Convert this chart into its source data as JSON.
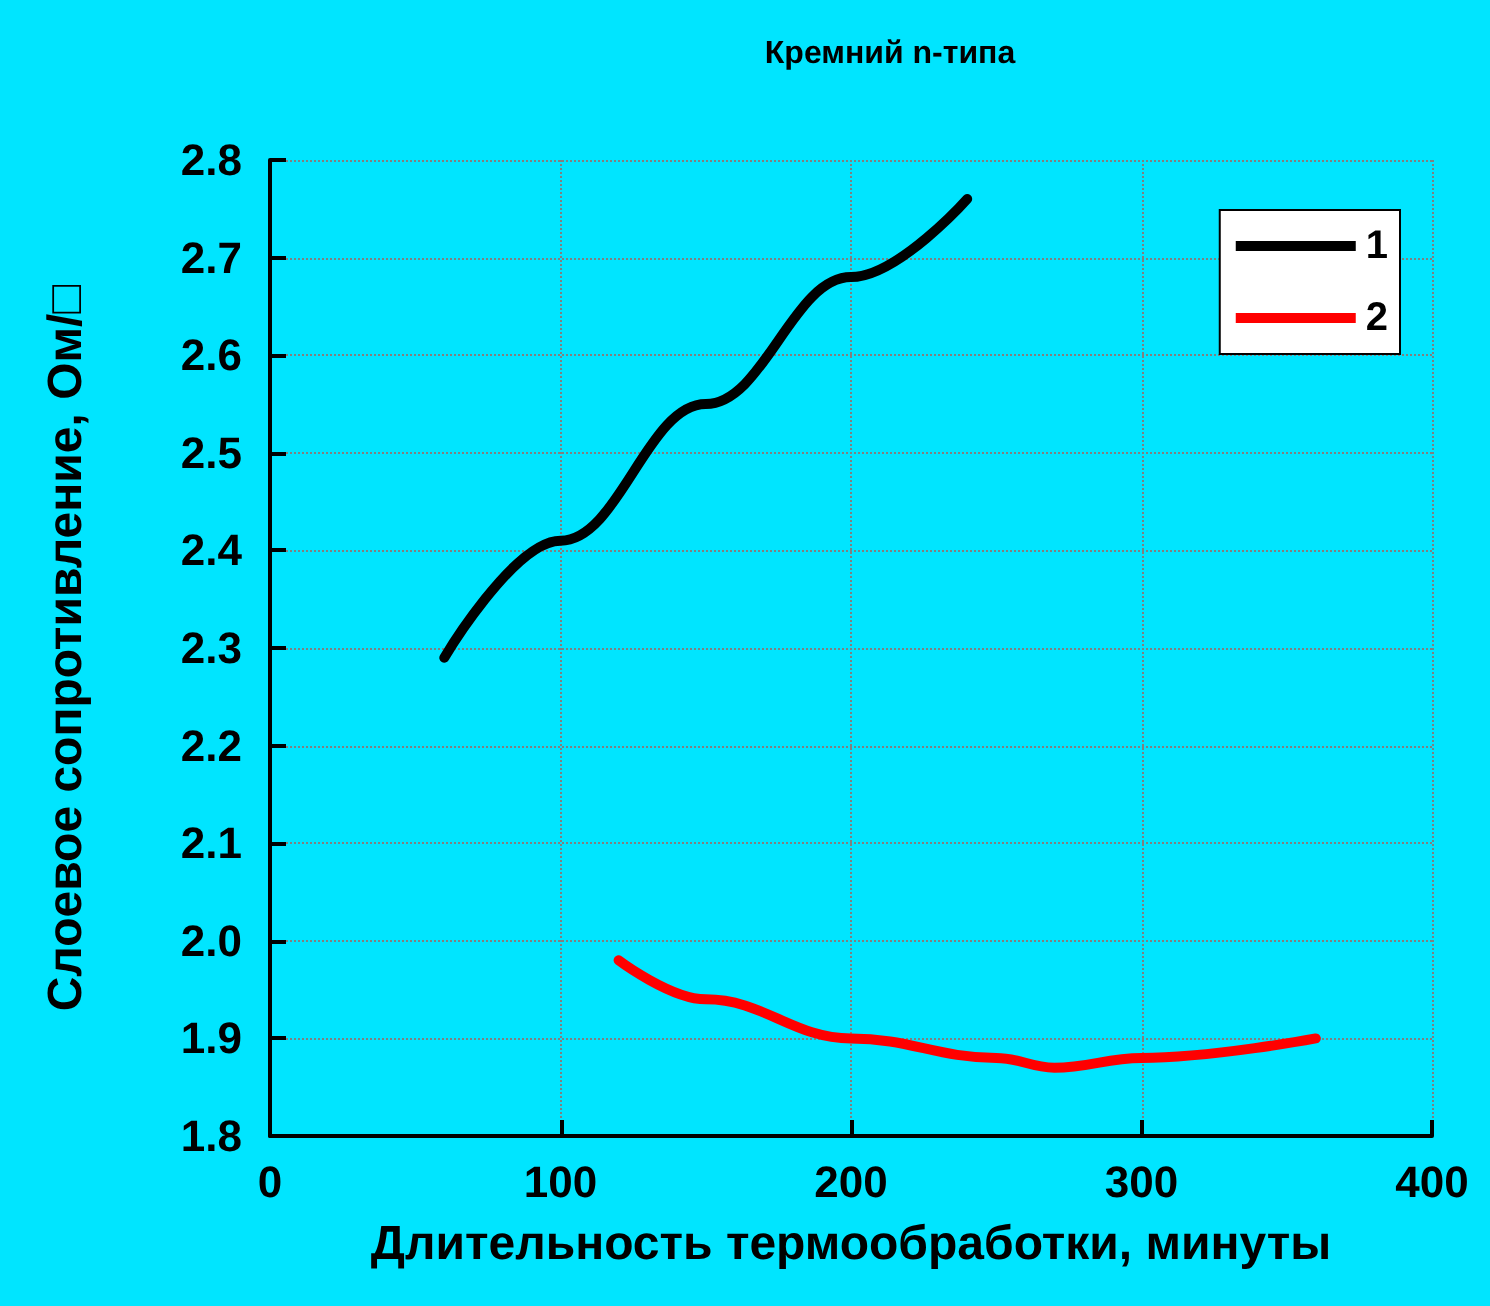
{
  "chart_data": {
    "type": "line",
    "title": "Кремний n-типа",
    "xlabel": "Длительность термообработки, минуты",
    "ylabel": "Слоевое сопротивление, Ом/□",
    "series": [
      {
        "name": "1",
        "color": "#000000",
        "x": [
          60,
          100,
          150,
          200,
          240
        ],
        "values": [
          2.29,
          2.41,
          2.55,
          2.68,
          2.76
        ]
      },
      {
        "name": "2",
        "color": "#ff0000",
        "x": [
          120,
          150,
          200,
          250,
          270,
          300,
          360
        ],
        "values": [
          1.98,
          1.94,
          1.9,
          1.88,
          1.87,
          1.88,
          1.9
        ]
      }
    ],
    "xlim": [
      0,
      400
    ],
    "xticks": [
      0,
      100,
      200,
      300,
      400
    ],
    "ylim": [
      1.8,
      2.8
    ],
    "yticks": [
      1.8,
      1.9,
      {
        "value": 2,
        "label": "2.0"
      },
      2.1,
      2.2,
      2.3,
      2.4,
      2.5,
      2.6,
      2.7,
      2.8
    ],
    "grid": true,
    "legend": "top right",
    "marker": "none",
    "line_style": "solid"
  }
}
